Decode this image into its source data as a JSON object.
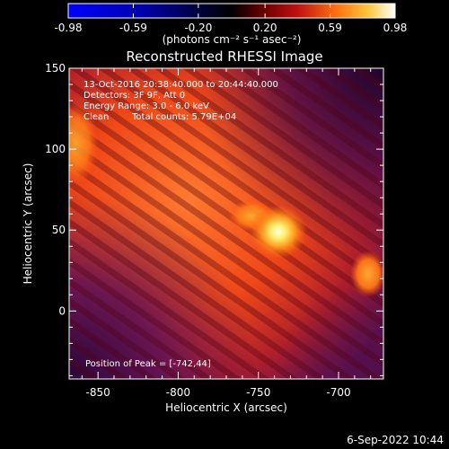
{
  "title": "Reconstructed RHESSI Image",
  "colorbar": {
    "tick_labels": [
      "-0.98",
      "-0.59",
      "-0.20",
      "0.20",
      "0.59",
      "0.98"
    ],
    "unit_label": "(photons cm⁻² s⁻¹ asec⁻²)",
    "range": [
      -0.98,
      0.98
    ],
    "colormap": "red-temperature with blue negative end"
  },
  "annotations": {
    "time_range": "13-Oct-2016 20:38:40.000 to 20:44:40.000",
    "detectors": "Detectors: 3F 9F, Att 0",
    "energy_range": "Energy Range: 3.0 - 6.0 keV",
    "method": "Clean",
    "total_counts": "Total counts: 5.79E+04",
    "peak_position": "Position of Peak = [-742,44]"
  },
  "x_axis": {
    "label": "Heliocentric X (arcsec)",
    "ticks": [
      "-850",
      "-800",
      "-750",
      "-700"
    ],
    "range": [
      -868,
      -672
    ]
  },
  "y_axis": {
    "label": "Heliocentric Y (arcsec)",
    "ticks": [
      "0",
      "50",
      "100",
      "150"
    ],
    "range": [
      -42,
      150
    ]
  },
  "footer_timestamp": "6-Sep-2022 10:44",
  "colors": {
    "background": "#000000",
    "foreground": "#ffffff",
    "hot_peak": "#ffffe0",
    "hot_mid": "#ff6a10",
    "cool": "#6a1060",
    "cold": "#2a0838"
  }
}
